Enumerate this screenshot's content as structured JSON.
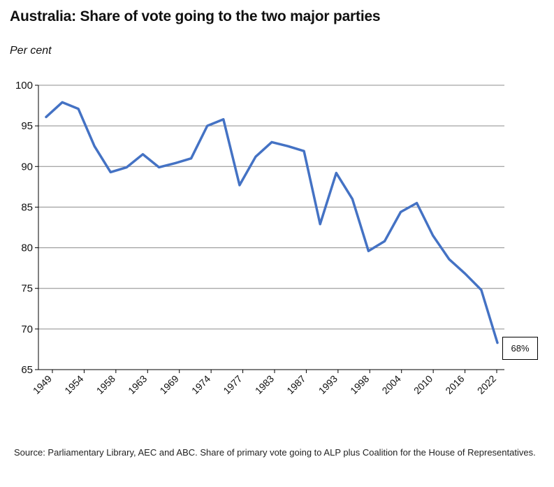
{
  "chart_data": {
    "type": "line",
    "title": "Australia: Share of vote going to the two major parties",
    "ylabel": "Per cent",
    "xlabel": "",
    "ylim": [
      65,
      100
    ],
    "y_ticks": [
      65,
      70,
      75,
      80,
      85,
      90,
      95,
      100
    ],
    "x_tick_labels": [
      "1949",
      "1954",
      "1958",
      "1963",
      "1969",
      "1974",
      "1977",
      "1983",
      "1987",
      "1993",
      "1998",
      "2004",
      "2010",
      "2016",
      "2022"
    ],
    "grid": true,
    "series": [
      {
        "color": "#4472C4",
        "values": [
          96.1,
          97.9,
          97.1,
          92.5,
          89.3,
          89.9,
          91.5,
          89.9,
          90.4,
          91.0,
          95.0,
          95.8,
          87.7,
          91.2,
          93.0,
          92.5,
          91.9,
          82.9,
          89.2,
          86.0,
          79.6,
          80.8,
          84.4,
          85.5,
          81.5,
          78.6,
          76.8,
          74.8,
          68.3
        ]
      }
    ],
    "annotation": {
      "text": "68%"
    }
  },
  "source_note": "Source: Parliamentary Library, AEC and ABC.  Share of primary vote going to ALP plus Coalition for the House of Representatives."
}
